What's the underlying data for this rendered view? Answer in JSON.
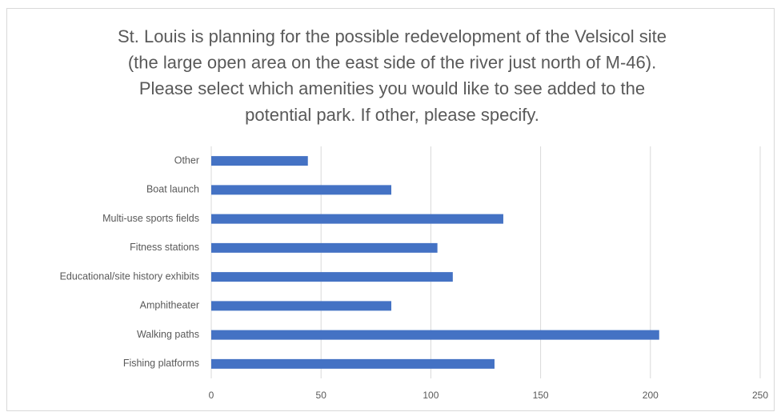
{
  "chart_data": {
    "type": "barh",
    "title": [
      "St. Louis is planning for the possible redevelopment of the Velsicol site",
      "(the large open area on the east side of the river just north of M-46).",
      "Please select which amenities you would like to see added to the",
      "potential park.  If other, please specify."
    ],
    "categories": [
      "Other",
      "Boat launch",
      "Multi-use sports fields",
      "Fitness stations",
      "Educational/site history exhibits",
      "Amphitheater",
      "Walking paths",
      "Fishing platforms"
    ],
    "values": [
      44,
      82,
      133,
      103,
      110,
      82,
      204,
      129
    ],
    "color": "#4472c4",
    "xlim": [
      0,
      250
    ],
    "xticks": [
      0,
      50,
      100,
      150,
      200,
      250
    ],
    "grid": true
  }
}
